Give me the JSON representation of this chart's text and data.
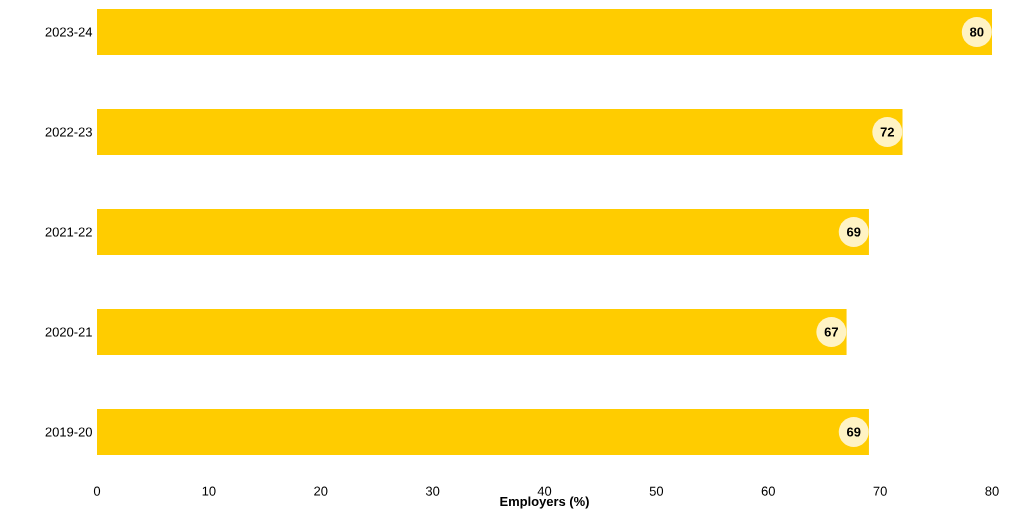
{
  "chart_data": {
    "type": "bar",
    "orientation": "horizontal",
    "xlabel": "Employers (%)",
    "categories": [
      "2023-24",
      "2022-23",
      "2021-22",
      "2020-21",
      "2019-20"
    ],
    "values": [
      80,
      72,
      69,
      67,
      69
    ],
    "color": "#ffcc00",
    "data_labels": true,
    "xlim": [
      0,
      80
    ],
    "xticks": [
      0,
      10,
      20,
      30,
      40,
      50,
      60,
      70,
      80
    ]
  }
}
